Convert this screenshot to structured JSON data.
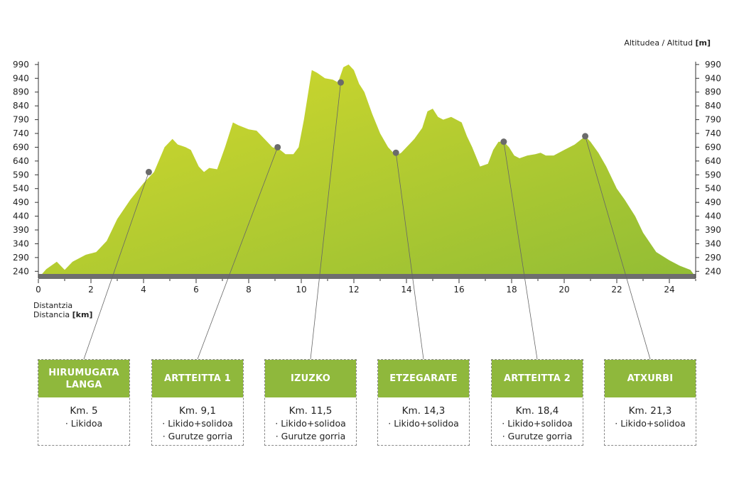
{
  "chart_data": {
    "type": "area",
    "xlabel_lines": [
      "Distantzia",
      "Distancia "
    ],
    "xlabel_unit": "[km]",
    "ylabel": "Altitudea / Altitud ",
    "ylabel_unit": "[m]",
    "xlim": [
      0,
      25
    ],
    "ylim": [
      215,
      1000
    ],
    "x_ticks": [
      0,
      2,
      4,
      6,
      8,
      10,
      12,
      14,
      16,
      18,
      20,
      22,
      24
    ],
    "y_ticks": [
      240,
      290,
      340,
      390,
      440,
      490,
      540,
      590,
      640,
      690,
      740,
      790,
      840,
      890,
      940,
      990
    ],
    "fill_colors": {
      "top": "#d5da2c",
      "bottom": "#92bd35",
      "base_bar": "#6e6e6e"
    },
    "x": [
      0,
      0.3,
      0.7,
      1.0,
      1.3,
      1.8,
      2.2,
      2.6,
      3.0,
      3.5,
      4.0,
      4.4,
      4.8,
      5.1,
      5.3,
      5.6,
      5.8,
      6.1,
      6.3,
      6.5,
      6.8,
      7.1,
      7.4,
      7.6,
      8.0,
      8.3,
      8.6,
      8.9,
      9.2,
      9.4,
      9.7,
      9.9,
      10.1,
      10.4,
      10.6,
      10.9,
      11.2,
      11.4,
      11.6,
      11.8,
      12.0,
      12.2,
      12.4,
      12.7,
      13.0,
      13.3,
      13.6,
      13.8,
      14.1,
      14.3,
      14.6,
      14.8,
      15.0,
      15.2,
      15.4,
      15.7,
      15.9,
      16.1,
      16.3,
      16.5,
      16.8,
      17.1,
      17.3,
      17.5,
      17.7,
      17.9,
      18.1,
      18.3,
      18.6,
      18.9,
      19.1,
      19.3,
      19.6,
      20.0,
      20.4,
      20.8,
      21.0,
      21.3,
      21.6,
      22.0,
      22.3,
      22.7,
      23.0,
      23.5,
      24.0,
      24.4,
      24.8,
      25.0
    ],
    "y": [
      215,
      248,
      275,
      245,
      275,
      300,
      310,
      350,
      430,
      500,
      560,
      600,
      690,
      720,
      700,
      690,
      680,
      620,
      600,
      615,
      610,
      690,
      780,
      770,
      755,
      750,
      720,
      690,
      680,
      665,
      665,
      690,
      790,
      970,
      960,
      940,
      935,
      925,
      980,
      990,
      970,
      920,
      890,
      810,
      740,
      690,
      660,
      670,
      700,
      720,
      760,
      820,
      830,
      800,
      790,
      800,
      790,
      780,
      730,
      690,
      620,
      630,
      680,
      710,
      710,
      690,
      660,
      650,
      660,
      665,
      670,
      660,
      660,
      680,
      700,
      730,
      710,
      670,
      620,
      540,
      500,
      440,
      380,
      310,
      280,
      260,
      245,
      220
    ],
    "stations": [
      {
        "name": "HIRUMUGATA LANGA",
        "km_label": "Km. 5",
        "lines": [
          "· Likidoa"
        ],
        "marker_x": 4.2,
        "marker_y": 600
      },
      {
        "name": "ARTTEITTA 1",
        "km_label": "Km. 9,1",
        "lines": [
          "· Likido+solidoa",
          "· Gurutze gorria"
        ],
        "marker_x": 9.1,
        "marker_y": 690
      },
      {
        "name": "IZUZKO",
        "km_label": "Km. 11,5",
        "lines": [
          "· Likido+solidoa",
          "· Gurutze gorria"
        ],
        "marker_x": 11.5,
        "marker_y": 925
      },
      {
        "name": "ETZEGARATE",
        "km_label": "Km. 14,3",
        "lines": [
          "· Likido+solidoa"
        ],
        "marker_x": 13.6,
        "marker_y": 670
      },
      {
        "name": "ARTTEITTA 2",
        "km_label": "Km. 18,4",
        "lines": [
          "· Likido+solidoa",
          "· Gurutze gorria"
        ],
        "marker_x": 17.7,
        "marker_y": 710
      },
      {
        "name": "ATXURBI",
        "km_label": "Km. 21,3",
        "lines": [
          "· Likido+solidoa"
        ],
        "marker_x": 20.8,
        "marker_y": 730
      }
    ]
  }
}
